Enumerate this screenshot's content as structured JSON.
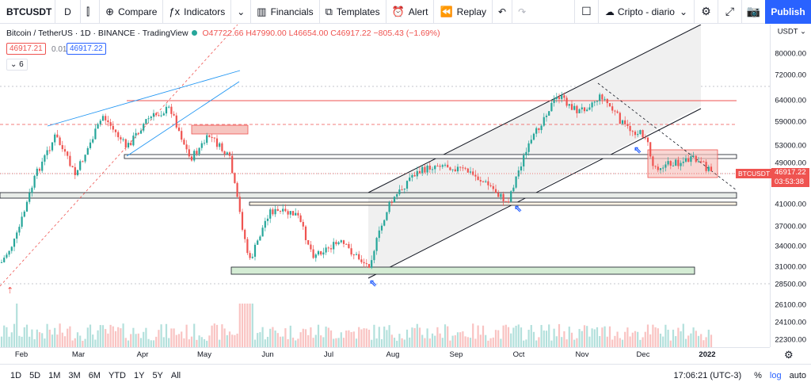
{
  "toolbar": {
    "symbol": "BTCUSDT",
    "resolution": "D",
    "compare_label": "Compare",
    "indicators_label": "Indicators",
    "financials_label": "Financials",
    "templates_label": "Templates",
    "alert_label": "Alert",
    "replay_label": "Replay",
    "layout_name": "Cripto - diario",
    "publish_label": "Publish"
  },
  "legend": {
    "title": "Bitcoin / TetherUS · 1D · BINANCE · TradingView",
    "open": "O47722.66",
    "high": "H47990.00",
    "low": "L46654.00",
    "close": "C46917.22",
    "change": "−805.43 (−1.69%)",
    "bid": "46917.21",
    "spread": "0.01",
    "ask": "46917.22",
    "indicator_count": "⌄ 6"
  },
  "price_axis": {
    "currency": "USDT",
    "ticks": [
      "80000.00",
      "72000.00",
      "64000.00",
      "59000.00",
      "53000.00",
      "49000.00",
      "41000.00",
      "37000.00",
      "34000.00",
      "31000.00",
      "28500.00",
      "26100.00",
      "24100.00",
      "22300.00"
    ],
    "last_price": "46917.22",
    "countdown": "03:53:38",
    "symbol_tag": "BTCUSDT"
  },
  "time_axis": {
    "ticks": [
      "Feb",
      "Mar",
      "Apr",
      "May",
      "Jun",
      "Jul",
      "Aug",
      "Sep",
      "Oct",
      "Nov",
      "Dec",
      "2022"
    ]
  },
  "bottom": {
    "ranges": [
      "1D",
      "5D",
      "1M",
      "3M",
      "6M",
      "YTD",
      "1Y",
      "5Y",
      "All"
    ],
    "clock": "17:06:21 (UTC-3)",
    "percent": "%",
    "log": "log",
    "auto": "auto"
  },
  "colors": {
    "up": "#26a69a",
    "down": "#ef5350",
    "accent": "#2962ff",
    "channel_fill": "#f0f0f0",
    "support_zone": "#d4ecd4",
    "resistance_zone": "#f6c5c0"
  }
}
